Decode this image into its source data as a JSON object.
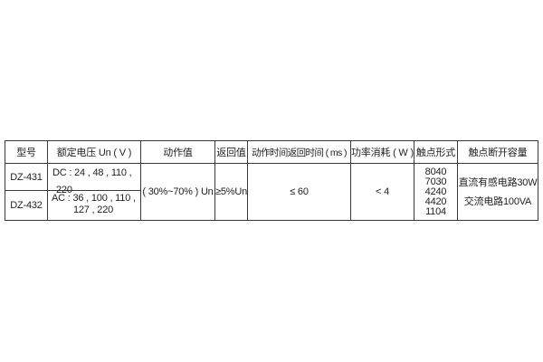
{
  "colors": {
    "background": "#ffffff",
    "table_border": "#3a3a3a",
    "text": "#1f1f1f"
  },
  "table": {
    "headers": [
      "型号",
      "额定电压 Un ( V )",
      "动作值",
      "返回值",
      "动作时间返回时间 ( ms )",
      "功率消耗 ( W )",
      "触点形式",
      "触点断开容量"
    ],
    "rows": [
      {
        "model": "DZ-431",
        "voltage_line1": "DC : 24 , 48 , 110 ,",
        "voltage_line2": "220"
      },
      {
        "model": "DZ-432",
        "voltage_line1": "AC : 36 , 100 , 110 ,",
        "voltage_line2": "127 , 220"
      }
    ],
    "merged": {
      "action_value": "( 30%~70% ) Un",
      "return_value": "≥5%Un",
      "time_value": "≤ 60",
      "power_value": "< 4",
      "contact_forms": [
        "8040",
        "7030",
        "4240",
        "4420",
        "1104"
      ],
      "capacity_lines": [
        "直流有感电路30W",
        "交流电路100VA"
      ]
    }
  }
}
